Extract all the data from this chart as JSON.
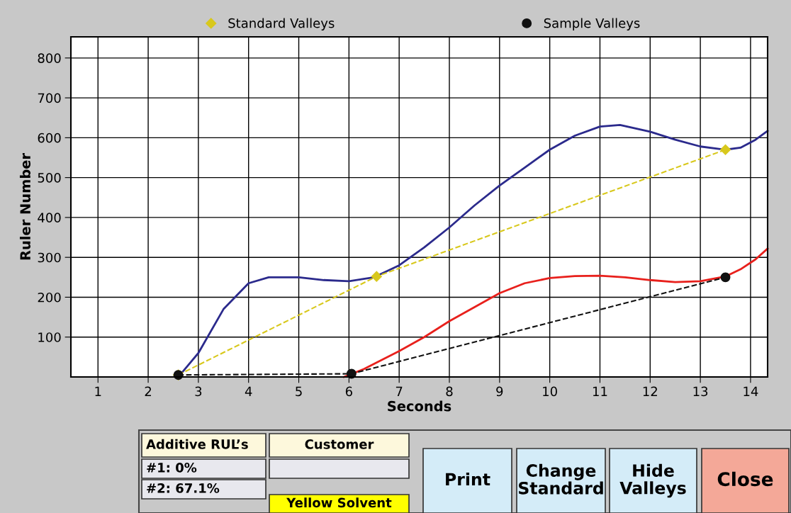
{
  "chart_data": {
    "type": "line",
    "xlabel": "Seconds",
    "ylabel": "Ruler Number",
    "xlim": [
      0.46,
      14.34
    ],
    "xticks": [
      1,
      2,
      3,
      4,
      5,
      6,
      7,
      8,
      9,
      10,
      11,
      12,
      13,
      14
    ],
    "ylim": [
      0,
      853
    ],
    "yticks": [
      100,
      200,
      300,
      400,
      500,
      600,
      700,
      800
    ],
    "grid": true,
    "legend": "top",
    "series": [
      {
        "color": "#2b2a8c",
        "line_style": "solid",
        "marker": "none",
        "x": [
          2.6,
          3,
          3.5,
          4,
          4.4,
          5,
          5.5,
          6,
          6.5,
          7,
          7.5,
          8,
          8.5,
          9,
          9.5,
          10,
          10.5,
          11,
          11.4,
          12,
          12.5,
          13,
          13.5,
          13.8,
          14.1,
          14.34
        ],
        "values": [
          0,
          60,
          170,
          235,
          250,
          250,
          243,
          240,
          250,
          280,
          325,
          375,
          430,
          480,
          525,
          570,
          605,
          628,
          632,
          615,
          595,
          578,
          570,
          575,
          595,
          617
        ]
      },
      {
        "color": "#e8201c",
        "line_style": "solid",
        "marker": "none",
        "x": [
          5.9,
          6.3,
          7,
          7.5,
          8,
          8.5,
          9,
          9.5,
          10,
          10.5,
          11,
          11.5,
          12,
          12.5,
          13,
          13.5,
          13.8,
          14.1,
          14.34
        ],
        "values": [
          0,
          20,
          65,
          100,
          140,
          175,
          210,
          235,
          248,
          253,
          254,
          250,
          243,
          238,
          240,
          252,
          270,
          295,
          322
        ]
      },
      {
        "name": "Standard Valleys",
        "color": "#d8c81c",
        "line_style": "dashed",
        "marker": "diamond",
        "x": [
          2.6,
          6.55,
          13.5
        ],
        "values": [
          5,
          252,
          570
        ]
      },
      {
        "name": "Sample Valleys",
        "color": "#111111",
        "line_style": "dashed",
        "marker": "circle",
        "x": [
          2.6,
          6.05,
          13.5
        ],
        "values": [
          5,
          8,
          250
        ]
      }
    ],
    "annotations": [
      "Additive RUL’s",
      "#1: 0%",
      "#2: 67.1%",
      "Customer",
      "Yellow Solvent",
      "Print",
      "Change Standard",
      "Hide Valleys",
      "Close"
    ]
  }
}
